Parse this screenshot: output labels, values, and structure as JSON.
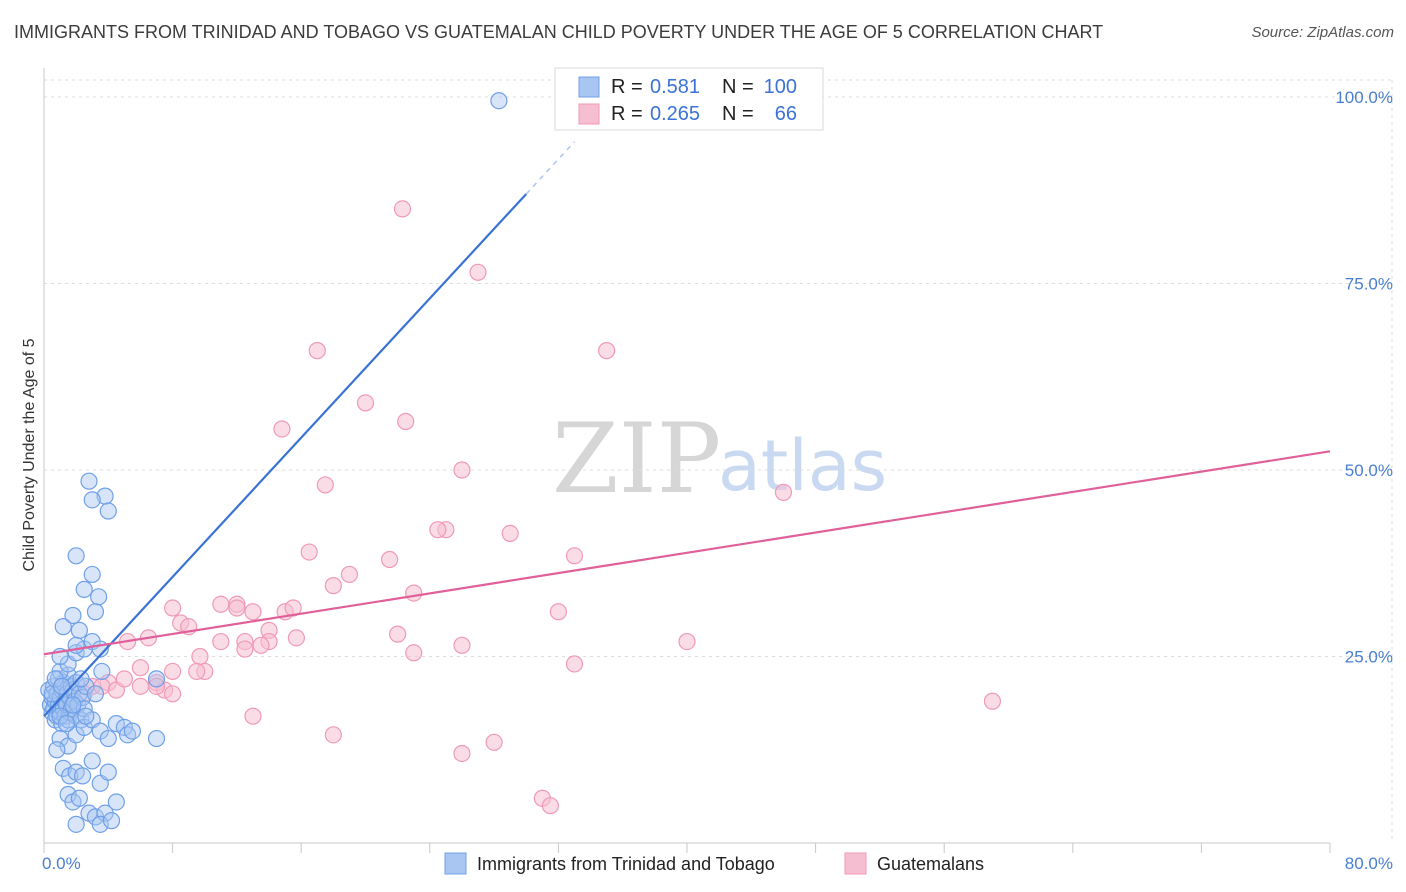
{
  "title": "IMMIGRANTS FROM TRINIDAD AND TOBAGO VS GUATEMALAN CHILD POVERTY UNDER THE AGE OF 5 CORRELATION CHART",
  "source": "Source: ZipAtlas.com",
  "watermark": {
    "zip": "ZIP",
    "atlas": "atlas"
  },
  "legend": {
    "r_label": "R =",
    "n_label": "N =",
    "rows": [
      {
        "r": "0.581",
        "n": "100",
        "color": "#6fa0e8"
      },
      {
        "r": "0.265",
        "n": "66",
        "color": "#f09ab5"
      }
    ]
  },
  "bottom_legend": [
    {
      "label": "Immigrants from Trinidad and Tobago",
      "color": "#6fa0e8"
    },
    {
      "label": "Guatemalans",
      "color": "#f09ab5"
    }
  ],
  "colors": {
    "blue": "#3b72d6",
    "pink": "#e0609a",
    "blue_fill": "#a9c6f2",
    "pink_fill": "#f6bfd1"
  },
  "chart_data": {
    "type": "scatter",
    "title": "IMMIGRANTS FROM TRINIDAD AND TOBAGO VS GUATEMALAN CHILD POVERTY UNDER THE AGE OF 5 CORRELATION CHART",
    "xlabel": "",
    "ylabel": "Child Poverty Under the Age of 5",
    "xlim": [
      0,
      80
    ],
    "ylim": [
      0,
      100
    ],
    "x_tick_labels": [
      "0.0%",
      "80.0%"
    ],
    "y_ticks": [
      25,
      50,
      75,
      100
    ],
    "y_tick_labels": [
      "25.0%",
      "50.0%",
      "75.0%",
      "100.0%"
    ],
    "grid": true,
    "legend_position": "top-center",
    "series": [
      {
        "name": "Immigrants from Trinidad and Tobago",
        "R": 0.581,
        "N": 100,
        "trend": {
          "x0": 0,
          "y0": 17.0,
          "x1": 30.0,
          "y1": 87.0,
          "dash_to_x": 33.0
        },
        "points": [
          [
            0.3,
            20.5
          ],
          [
            0.4,
            18.5
          ],
          [
            0.5,
            17.5
          ],
          [
            0.5,
            19.5
          ],
          [
            0.6,
            21.0
          ],
          [
            0.6,
            18.0
          ],
          [
            0.7,
            16.5
          ],
          [
            0.7,
            19.0
          ],
          [
            0.8,
            20.0
          ],
          [
            0.8,
            17.0
          ],
          [
            0.9,
            18.5
          ],
          [
            0.9,
            22.0
          ],
          [
            1.0,
            19.5
          ],
          [
            1.0,
            17.5
          ],
          [
            1.1,
            20.5
          ],
          [
            1.1,
            16.0
          ],
          [
            1.2,
            18.0
          ],
          [
            1.2,
            21.5
          ],
          [
            1.3,
            19.0
          ],
          [
            1.3,
            17.0
          ],
          [
            1.4,
            20.0
          ],
          [
            1.4,
            18.5
          ],
          [
            1.5,
            22.5
          ],
          [
            1.5,
            16.5
          ],
          [
            1.6,
            19.5
          ],
          [
            1.6,
            17.5
          ],
          [
            1.7,
            21.0
          ],
          [
            1.7,
            18.0
          ],
          [
            1.8,
            20.5
          ],
          [
            1.9,
            19.0
          ],
          [
            2.0,
            17.0
          ],
          [
            2.0,
            21.5
          ],
          [
            2.1,
            18.5
          ],
          [
            2.2,
            20.0
          ],
          [
            2.3,
            16.5
          ],
          [
            2.4,
            19.5
          ],
          [
            2.5,
            18.0
          ],
          [
            2.6,
            21.0
          ],
          [
            1.0,
            23.0
          ],
          [
            1.5,
            24.0
          ],
          [
            2.0,
            25.5
          ],
          [
            2.5,
            26.0
          ],
          [
            3.0,
            27.0
          ],
          [
            1.2,
            29.0
          ],
          [
            1.8,
            30.5
          ],
          [
            2.2,
            28.5
          ],
          [
            3.2,
            31.0
          ],
          [
            3.4,
            33.0
          ],
          [
            2.5,
            34.0
          ],
          [
            3.0,
            36.0
          ],
          [
            2.0,
            38.5
          ],
          [
            2.8,
            48.5
          ],
          [
            3.8,
            46.5
          ],
          [
            4.0,
            44.5
          ],
          [
            3.0,
            46.0
          ],
          [
            1.0,
            14.0
          ],
          [
            1.5,
            13.0
          ],
          [
            2.0,
            14.5
          ],
          [
            2.5,
            15.5
          ],
          [
            3.0,
            16.5
          ],
          [
            3.5,
            15.0
          ],
          [
            4.0,
            14.0
          ],
          [
            4.5,
            16.0
          ],
          [
            5.0,
            15.5
          ],
          [
            5.2,
            14.5
          ],
          [
            5.5,
            15.0
          ],
          [
            7.0,
            14.0
          ],
          [
            0.8,
            12.5
          ],
          [
            1.2,
            10.0
          ],
          [
            1.6,
            9.0
          ],
          [
            2.0,
            9.5
          ],
          [
            2.4,
            9.0
          ],
          [
            3.0,
            11.0
          ],
          [
            3.5,
            8.0
          ],
          [
            4.0,
            9.5
          ],
          [
            1.5,
            6.5
          ],
          [
            1.8,
            5.5
          ],
          [
            2.2,
            6.0
          ],
          [
            2.8,
            4.0
          ],
          [
            3.2,
            3.5
          ],
          [
            3.8,
            4.0
          ],
          [
            4.5,
            5.5
          ],
          [
            2.0,
            2.5
          ],
          [
            3.5,
            2.5
          ],
          [
            4.2,
            3.0
          ],
          [
            1.0,
            17.0
          ],
          [
            1.4,
            16.0
          ],
          [
            2.3,
            22.0
          ],
          [
            3.5,
            26.0
          ],
          [
            3.6,
            23.0
          ],
          [
            0.5,
            20.0
          ],
          [
            0.7,
            22.0
          ],
          [
            1.1,
            21.0
          ],
          [
            1.8,
            18.5
          ],
          [
            2.6,
            17.0
          ],
          [
            3.2,
            20.0
          ],
          [
            7.0,
            22.0
          ],
          [
            1.0,
            25.0
          ],
          [
            2.0,
            26.5
          ],
          [
            28.3,
            99.5
          ]
        ]
      },
      {
        "name": "Guatemalans",
        "R": 0.265,
        "N": 66,
        "trend": {
          "x0": 0,
          "y0": 25.3,
          "x1": 80,
          "y1": 52.5
        },
        "points": [
          [
            22.3,
            85.0
          ],
          [
            27.0,
            76.5
          ],
          [
            17.0,
            66.0
          ],
          [
            35.0,
            66.0
          ],
          [
            20.0,
            59.0
          ],
          [
            22.5,
            56.5
          ],
          [
            14.8,
            55.5
          ],
          [
            26.0,
            50.0
          ],
          [
            17.5,
            48.0
          ],
          [
            46.0,
            47.0
          ],
          [
            25.0,
            42.0
          ],
          [
            24.5,
            42.0
          ],
          [
            29.0,
            41.5
          ],
          [
            33.0,
            38.5
          ],
          [
            16.5,
            39.0
          ],
          [
            21.5,
            38.0
          ],
          [
            19.0,
            36.0
          ],
          [
            18.0,
            34.5
          ],
          [
            23.0,
            33.5
          ],
          [
            8.0,
            31.5
          ],
          [
            11.0,
            32.0
          ],
          [
            12.0,
            32.0
          ],
          [
            12.0,
            31.5
          ],
          [
            15.0,
            31.0
          ],
          [
            15.5,
            31.5
          ],
          [
            32.0,
            31.0
          ],
          [
            13.0,
            31.0
          ],
          [
            8.5,
            29.5
          ],
          [
            9.0,
            29.0
          ],
          [
            14.0,
            28.5
          ],
          [
            12.5,
            27.0
          ],
          [
            15.7,
            27.5
          ],
          [
            6.5,
            27.5
          ],
          [
            5.2,
            27.0
          ],
          [
            11.0,
            27.0
          ],
          [
            12.5,
            26.0
          ],
          [
            14.0,
            27.0
          ],
          [
            13.5,
            26.5
          ],
          [
            22.0,
            28.0
          ],
          [
            23.0,
            25.5
          ],
          [
            40.0,
            27.0
          ],
          [
            26.0,
            26.5
          ],
          [
            9.7,
            25.0
          ],
          [
            10.0,
            23.0
          ],
          [
            33.0,
            24.0
          ],
          [
            8.0,
            23.0
          ],
          [
            9.5,
            23.0
          ],
          [
            6.0,
            23.5
          ],
          [
            7.0,
            21.5
          ],
          [
            4.0,
            21.5
          ],
          [
            3.0,
            21.0
          ],
          [
            3.6,
            21.0
          ],
          [
            4.5,
            20.5
          ],
          [
            7.5,
            20.5
          ],
          [
            8.0,
            20.0
          ],
          [
            2.5,
            20.0
          ],
          [
            13.0,
            17.0
          ],
          [
            59.0,
            19.0
          ],
          [
            18.0,
            14.5
          ],
          [
            26.0,
            12.0
          ],
          [
            28.0,
            13.5
          ],
          [
            31.0,
            6.0
          ],
          [
            31.5,
            5.0
          ],
          [
            6.0,
            21.0
          ],
          [
            7.0,
            21.0
          ],
          [
            5.0,
            22.0
          ]
        ]
      }
    ]
  }
}
